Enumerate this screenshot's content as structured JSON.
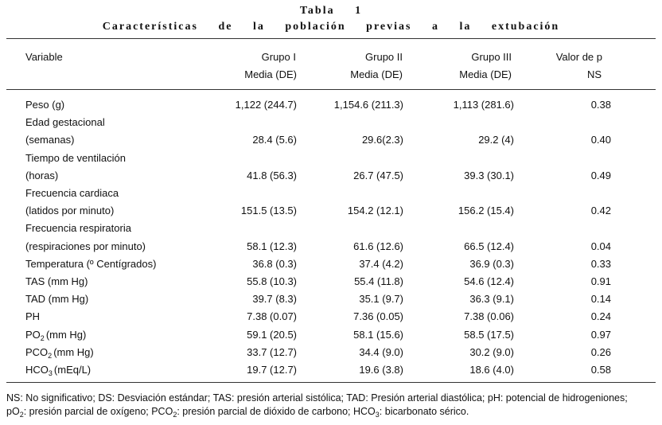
{
  "title": {
    "label": "Tabla 1",
    "caption": "Características de la población previas a la extubación"
  },
  "table": {
    "header": [
      [
        "Variable"
      ],
      [
        "Grupo I",
        "Media (DE)"
      ],
      [
        "Grupo II",
        "Media (DE)"
      ],
      [
        "Grupo III",
        "Media (DE)"
      ],
      [
        "Valor de p",
        "NS"
      ]
    ],
    "rows": [
      {
        "label": [
          "Peso (g)"
        ],
        "values": [
          "1,122 (244.7)",
          "1,154.6 (211.3)",
          "1,113 (281.6)",
          "0.38"
        ]
      },
      {
        "label": [
          "Edad gestacional",
          "(semanas)"
        ],
        "values": [
          "28.4 (5.6)",
          "29.6(2.3)",
          "29.2 (4)",
          "0.40"
        ]
      },
      {
        "label": [
          "Tiempo de ventilación",
          "(horas)"
        ],
        "values": [
          "41.8 (56.3)",
          "26.7 (47.5)",
          "39.3 (30.1)",
          "0.49"
        ]
      },
      {
        "label": [
          "Frecuencia cardiaca",
          "(latidos por minuto)"
        ],
        "values": [
          "151.5 (13.5)",
          "154.2 (12.1)",
          "156.2 (15.4)",
          "0.42"
        ]
      },
      {
        "label": [
          "Frecuencia respiratoria",
          "(respiraciones por minuto)"
        ],
        "values": [
          "58.1 (12.3)",
          "61.6 (12.6)",
          "66.5 (12.4)",
          "0.04"
        ]
      },
      {
        "label": [
          "Temperatura (º Centígrados)"
        ],
        "values": [
          "36.8 (0.3)",
          "37.4 (4.2)",
          "36.9 (0.3)",
          "0.33"
        ]
      },
      {
        "label": [
          "TAS (mm Hg)"
        ],
        "values": [
          "55.8 (10.3)",
          "55.4 (11.8)",
          "54.6 (12.4)",
          "0.91"
        ]
      },
      {
        "label": [
          "TAD (mm Hg)"
        ],
        "values": [
          "39.7 (8.3)",
          "35.1 (9.7)",
          "36.3 (9.1)",
          "0.14"
        ]
      },
      {
        "label": [
          "PH"
        ],
        "values": [
          "7.38 (0.07)",
          "7.36 (0.05)",
          "7.38 (0.06)",
          "0.24"
        ]
      },
      {
        "label": [
          [
            "PO",
            "2",
            "(mm Hg)"
          ]
        ],
        "values": [
          "59.1 (20.5)",
          "58.1 (15.6)",
          "58.5 (17.5)",
          "0.97"
        ]
      },
      {
        "label": [
          [
            "PCO",
            "2",
            "(mm Hg)"
          ]
        ],
        "values": [
          "33.7 (12.7)",
          "34.4 (9.0)",
          "30.2 (9.0)",
          "0.26"
        ]
      },
      {
        "label": [
          [
            "HCO",
            "3",
            "(mEq/L)"
          ]
        ],
        "values": [
          "19.7 (12.7)",
          "19.6 (3.8)",
          "18.6 (4.0)",
          "0.58"
        ]
      }
    ]
  },
  "footnote": [
    "NS: No significativo; DS: Desviación estándar; TAS: presión arterial sistólica; TAD: Presión arterial diastólica; pH: potencial de hidrogeniones; pO",
    "2",
    ": presión parcial de oxígeno; PCO",
    "2",
    ": presión parcial de dióxido de carbono; HCO",
    "3",
    ": bicarbonato sérico."
  ]
}
